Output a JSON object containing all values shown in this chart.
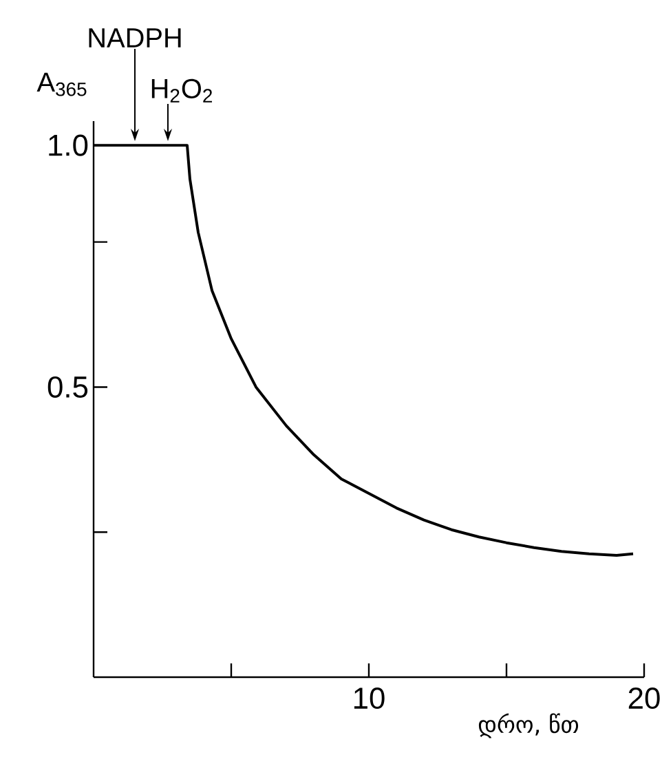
{
  "chart_data": {
    "type": "line",
    "xlabel": "დრო, წთ",
    "ylabel": "A$_{365}$",
    "x": [
      0,
      3.4,
      3.5,
      3.8,
      4.3,
      5,
      5.9,
      7,
      8,
      9,
      10,
      11,
      12,
      13,
      14,
      15,
      16,
      17,
      18,
      19,
      19.6
    ],
    "series": [
      {
        "color": "#000000",
        "values": [
          1.0,
          1.0,
          0.93,
          0.82,
          0.7,
          0.6,
          0.5,
          0.42,
          0.36,
          0.31,
          0.28,
          0.25,
          0.225,
          0.205,
          0.19,
          0.178,
          0.168,
          0.16,
          0.155,
          0.152,
          0.155
        ]
      }
    ],
    "xlim": [
      0,
      20
    ],
    "ylim": [
      -0.1,
      1.05
    ],
    "xticks": [
      {
        "value": 5,
        "label": null
      },
      10,
      {
        "value": 15,
        "label": null
      },
      20
    ],
    "yticks": [
      {
        "value": 0.2,
        "label": null
      },
      {
        "value": 0.5,
        "label": "0.5"
      },
      {
        "value": 0.8,
        "label": null
      },
      {
        "value": 1.0,
        "label": "1.0"
      }
    ],
    "annotations": [
      {
        "text": "NADPH",
        "x": 1.5,
        "y": 1.0
      },
      {
        "text": "H$_{2}$O$_{2}$",
        "x": 2.7,
        "y": 1.0
      }
    ]
  }
}
